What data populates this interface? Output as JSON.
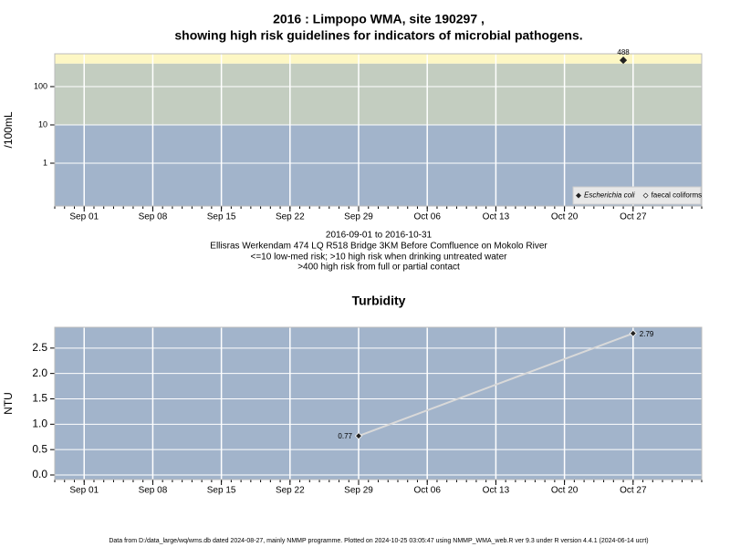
{
  "chart_data": [
    {
      "type": "scatter",
      "title": [
        "2016 : Limpopo WMA, site 190297 ,",
        "showing high risk guidelines for indicators of microbial pathogens."
      ],
      "ylabel": "/100mL",
      "log": true,
      "ylim": [
        0.076,
        720
      ],
      "yticks": [
        1,
        10,
        100
      ],
      "xlim": [
        "2016-08-29",
        "2016-11-03"
      ],
      "xticks": [
        {
          "value": "2016-09-01",
          "label": "Sep 01"
        },
        {
          "value": "2016-09-08",
          "label": "Sep 08"
        },
        {
          "value": "2016-09-15",
          "label": "Sep 15"
        },
        {
          "value": "2016-09-22",
          "label": "Sep 22"
        },
        {
          "value": "2016-09-29",
          "label": "Sep 29"
        },
        {
          "value": "2016-10-06",
          "label": "Oct 06"
        },
        {
          "value": "2016-10-13",
          "label": "Oct 13"
        },
        {
          "value": "2016-10-20",
          "label": "Oct 20"
        },
        {
          "value": "2016-10-27",
          "label": "Oct 27"
        }
      ],
      "thresholds": [
        10,
        400
      ],
      "band_colors": [
        "#a2b4cb",
        "#c3cdc0",
        "#fdf7c4"
      ],
      "grid": true,
      "legend": "bottom-right",
      "series": [
        {
          "name": "Escherichia coli",
          "color": "#333333",
          "filled": true,
          "x": [
            "2016-10-26"
          ],
          "values": [
            488
          ]
        },
        {
          "name": "faecal coliforms",
          "color": "#333333",
          "filled": false,
          "x": [],
          "values": []
        }
      ],
      "notes": [
        "2016-09-01 to 2016-10-31",
        "Ellisras Werkendam 474 LQ R518 Bridge 3KM Before Comfluence on Mokolo River",
        "<=10 low-med risk; >10 high risk when drinking untreated water",
        ">400 high risk from full or partial contact"
      ]
    },
    {
      "type": "line",
      "title": [
        "Turbidity"
      ],
      "ylabel": "NTU",
      "log": false,
      "ylim": [
        -0.09,
        2.91
      ],
      "yticks": [
        {
          "value": 0,
          "label": "0.0"
        },
        0.5,
        {
          "value": 1,
          "label": "1.0"
        },
        1.5,
        {
          "value": 2,
          "label": "2.0"
        },
        2.5
      ],
      "xlim": [
        "2016-08-29",
        "2016-11-03"
      ],
      "xticks": [
        {
          "value": "2016-09-01",
          "label": "Sep 01"
        },
        {
          "value": "2016-09-08",
          "label": "Sep 08"
        },
        {
          "value": "2016-09-15",
          "label": "Sep 15"
        },
        {
          "value": "2016-09-22",
          "label": "Sep 22"
        },
        {
          "value": "2016-09-29",
          "label": "Sep 29"
        },
        {
          "value": "2016-10-06",
          "label": "Oct 06"
        },
        {
          "value": "2016-10-13",
          "label": "Oct 13"
        },
        {
          "value": "2016-10-20",
          "label": "Oct 20"
        },
        {
          "value": "2016-10-27",
          "label": "Oct 27"
        }
      ],
      "background": "#a2b4cb",
      "grid": true,
      "series": [
        {
          "color": "#d9d9d9",
          "x": [
            "2016-09-29",
            "2016-10-27"
          ],
          "values": [
            0.77,
            2.79
          ]
        }
      ]
    }
  ],
  "footer": "Data from D:/data_large/wq/wms.db dated 2024-08-27, mainly NMMP programme. Plotted on 2024-10-25 03:05:47 using NMMP_WMA_web.R ver 9.3 under R version 4.4.1 (2024-06-14 ucrt)"
}
